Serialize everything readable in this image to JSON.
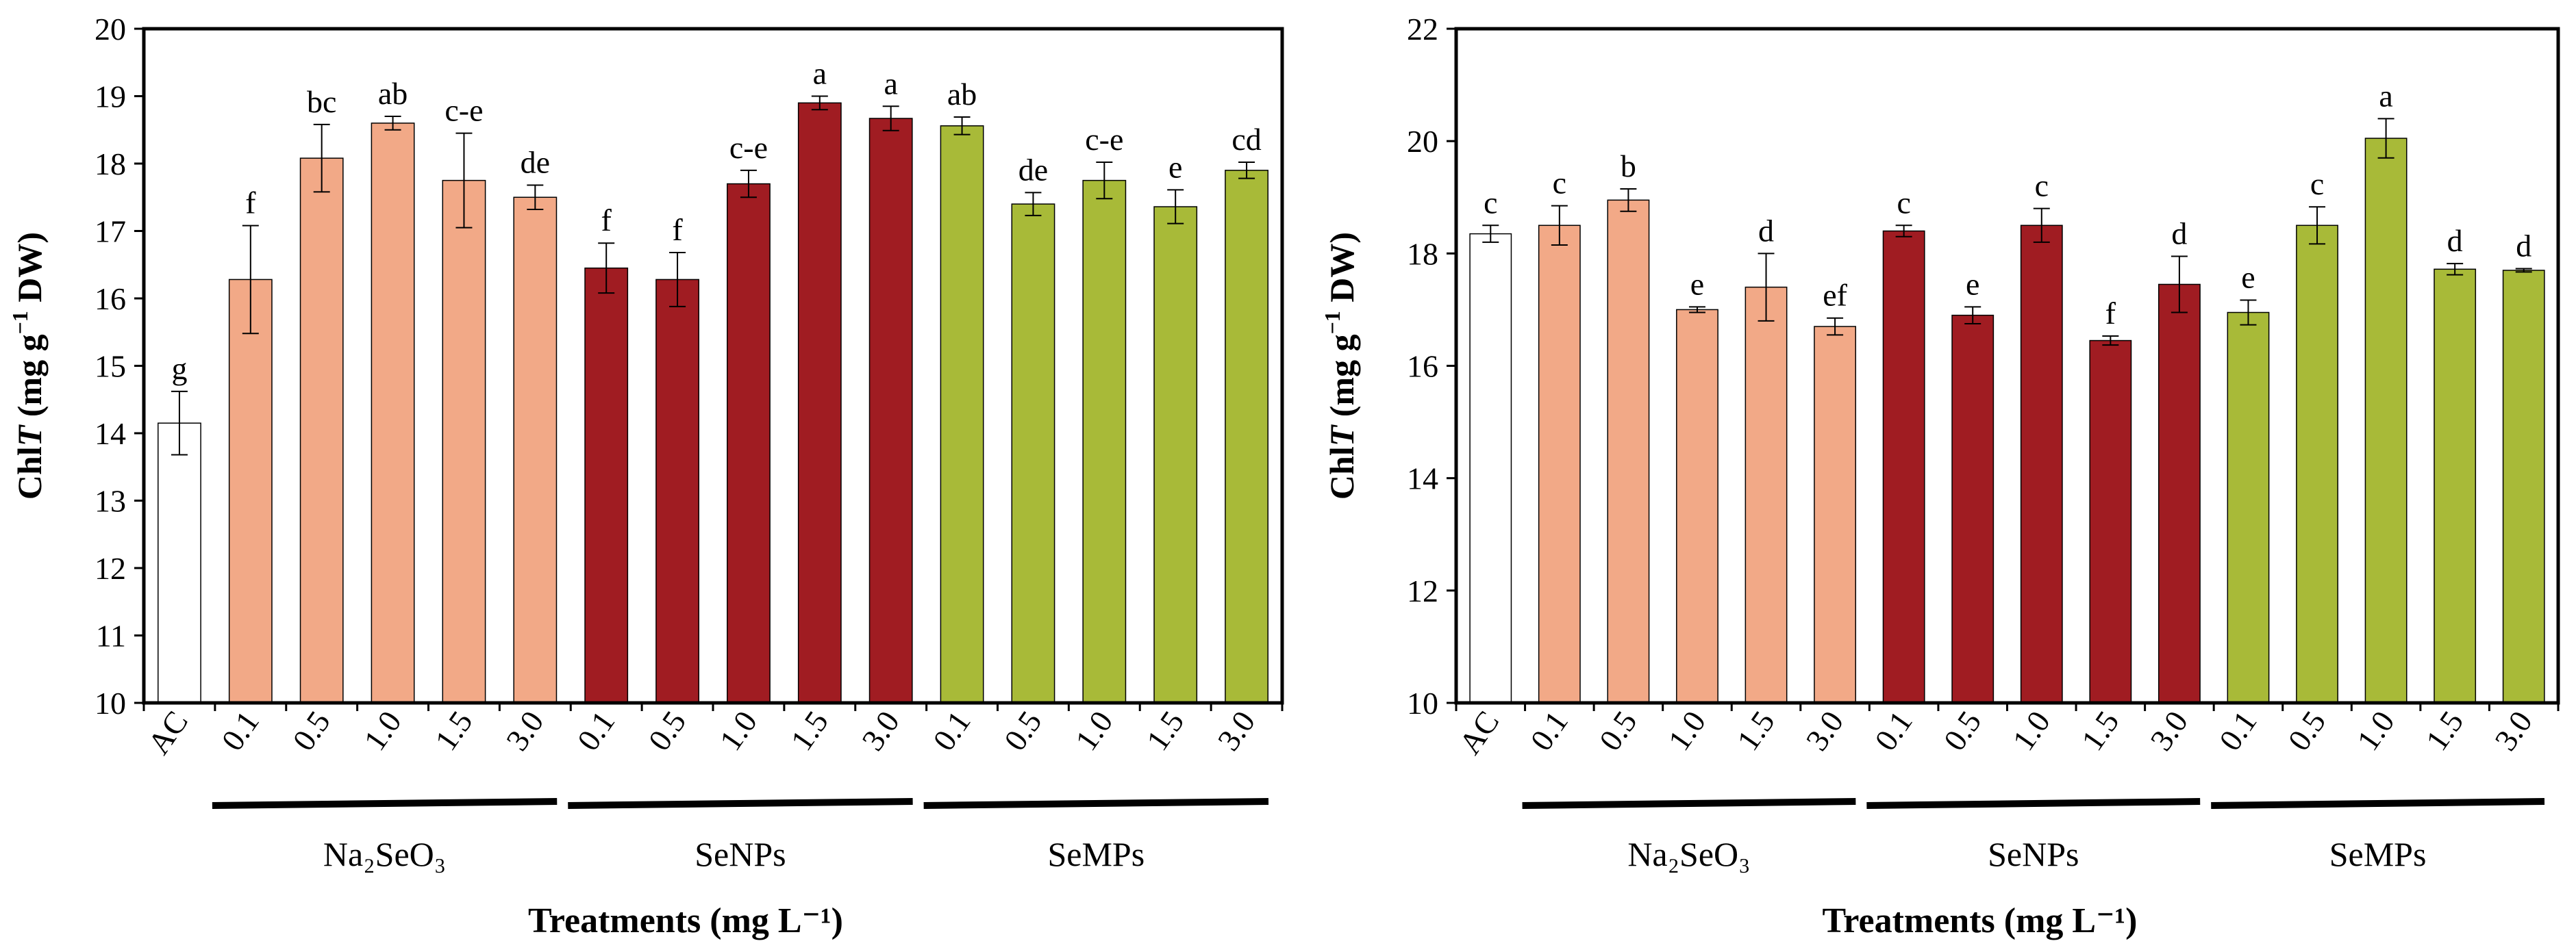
{
  "colors": {
    "control": "#ffffff",
    "na2seo3": "#f2a987",
    "senps": "#a01c22",
    "semps": "#a8ba38",
    "outline": "#000000"
  },
  "chart_data": [
    {
      "type": "bar",
      "ylabel": {
        "prefix": "Chl",
        "italic": "T",
        "unit_a": " (mg g",
        "sup": "−1",
        "unit_b": " DW)"
      },
      "xlabel": "Treatments (mg L⁻¹)",
      "ylim": [
        10,
        20
      ],
      "yticks": [
        "10",
        "11",
        "12",
        "13",
        "14",
        "15",
        "16",
        "17",
        "18",
        "19",
        "20"
      ],
      "categories": [
        "AC",
        "0.1",
        "0.5",
        "1.0",
        "1.5",
        "3.0",
        "0.1",
        "0.5",
        "1.0",
        "1.5",
        "3.0",
        "0.1",
        "0.5",
        "1.0",
        "1.5",
        "3.0"
      ],
      "groups": [
        {
          "label": "Na₂SeO₃",
          "series": "na2seo3"
        },
        {
          "label": "SeNPs",
          "series": "senps"
        },
        {
          "label": "SeMPs",
          "series": "semps"
        }
      ],
      "series_of_bar": [
        "control",
        "na2seo3",
        "na2seo3",
        "na2seo3",
        "na2seo3",
        "na2seo3",
        "senps",
        "senps",
        "senps",
        "senps",
        "senps",
        "semps",
        "semps",
        "semps",
        "semps",
        "semps"
      ],
      "values": [
        14.15,
        16.28,
        18.08,
        18.6,
        17.75,
        17.5,
        16.45,
        16.28,
        17.7,
        18.9,
        18.67,
        18.56,
        17.4,
        17.75,
        17.36,
        17.9
      ],
      "errors": [
        0.47,
        0.8,
        0.5,
        0.1,
        0.7,
        0.18,
        0.37,
        0.4,
        0.2,
        0.1,
        0.18,
        0.13,
        0.17,
        0.27,
        0.25,
        0.12
      ],
      "letters": [
        "g",
        "f",
        "bc",
        "ab",
        "c-e",
        "de",
        "f",
        "f",
        "c-e",
        "a",
        "a",
        "ab",
        "de",
        "c-e",
        "e",
        "cd"
      ]
    },
    {
      "type": "bar",
      "ylabel": {
        "prefix": "Chl",
        "italic": "T",
        "unit_a": " (mg g",
        "sup": "−1",
        "unit_b": " DW)"
      },
      "xlabel": "Treatments (mg L⁻¹)",
      "ylim": [
        10,
        22
      ],
      "yticks": [
        "10",
        "12",
        "14",
        "16",
        "18",
        "20",
        "22"
      ],
      "categories": [
        "AC",
        "0.1",
        "0.5",
        "1.0",
        "1.5",
        "3.0",
        "0.1",
        "0.5",
        "1.0",
        "1.5",
        "3.0",
        "0.1",
        "0.5",
        "1.0",
        "1.5",
        "3.0"
      ],
      "groups": [
        {
          "label": "Na₂SeO₃",
          "series": "na2seo3"
        },
        {
          "label": "SeNPs",
          "series": "senps"
        },
        {
          "label": "SeMPs",
          "series": "semps"
        }
      ],
      "series_of_bar": [
        "control",
        "na2seo3",
        "na2seo3",
        "na2seo3",
        "na2seo3",
        "na2seo3",
        "senps",
        "senps",
        "senps",
        "senps",
        "senps",
        "semps",
        "semps",
        "semps",
        "semps",
        "semps"
      ],
      "values": [
        18.35,
        18.5,
        18.95,
        17.0,
        17.4,
        16.7,
        18.4,
        16.9,
        18.5,
        16.45,
        17.45,
        16.95,
        18.5,
        20.05,
        17.72,
        17.7
      ],
      "errors": [
        0.15,
        0.35,
        0.2,
        0.05,
        0.6,
        0.15,
        0.1,
        0.15,
        0.3,
        0.08,
        0.5,
        0.22,
        0.33,
        0.35,
        0.1,
        0.03
      ],
      "letters": [
        "c",
        "c",
        "b",
        "e",
        "d",
        "ef",
        "c",
        "e",
        "c",
        "f",
        "d",
        "e",
        "c",
        "a",
        "d",
        "d"
      ]
    }
  ]
}
